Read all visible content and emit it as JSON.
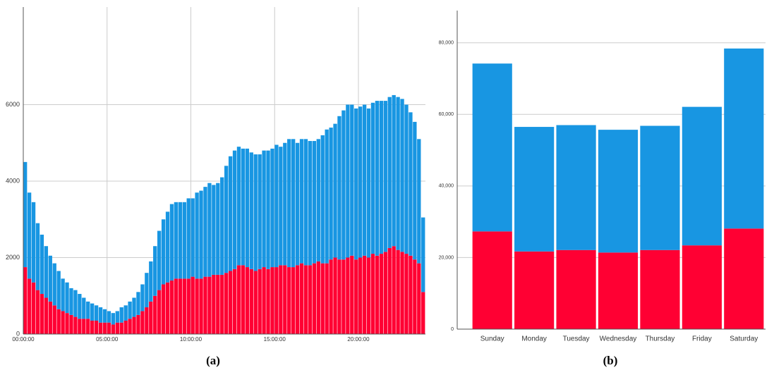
{
  "chart_data": [
    {
      "type": "histogram",
      "caption": "(a)",
      "bins": [
        0,
        0.25,
        0.5,
        0.75,
        1,
        1.25,
        1.5,
        1.75,
        2,
        2.25,
        2.5,
        2.75,
        3,
        3.25,
        3.5,
        3.75,
        4,
        4.25,
        4.5,
        4.75,
        5,
        5.25,
        5.5,
        5.75,
        6,
        6.25,
        6.5,
        6.75,
        7,
        7.25,
        7.5,
        7.75,
        8,
        8.25,
        8.5,
        8.75,
        9,
        9.25,
        9.5,
        9.75,
        10,
        10.25,
        10.5,
        10.75,
        11,
        11.25,
        11.5,
        11.75,
        12,
        12.25,
        12.5,
        12.75,
        13,
        13.25,
        13.5,
        13.75,
        14,
        14.25,
        14.5,
        14.75,
        15,
        15.25,
        15.5,
        15.75,
        16,
        16.25,
        16.5,
        16.75,
        17,
        17.25,
        17.5,
        17.75,
        18,
        18.25,
        18.5,
        18.75,
        19,
        19.25,
        19.5,
        19.75,
        20,
        20.25,
        20.5,
        20.75,
        21,
        21.25,
        21.5,
        21.75,
        22,
        22.25,
        22.5,
        22.75,
        23,
        23.25,
        23.5,
        23.75,
        24
      ],
      "series": [
        {
          "color": "#ff0033",
          "values": [
            1750,
            1450,
            1350,
            1150,
            1050,
            950,
            850,
            750,
            650,
            600,
            550,
            500,
            450,
            400,
            400,
            400,
            350,
            350,
            300,
            300,
            300,
            250,
            300,
            300,
            350,
            400,
            450,
            500,
            600,
            700,
            850,
            1000,
            1150,
            1300,
            1350,
            1400,
            1450,
            1450,
            1450,
            1450,
            1500,
            1450,
            1450,
            1500,
            1500,
            1550,
            1550,
            1550,
            1600,
            1650,
            1700,
            1800,
            1800,
            1750,
            1700,
            1650,
            1700,
            1750,
            1700,
            1750,
            1750,
            1800,
            1800,
            1750,
            1750,
            1800,
            1850,
            1800,
            1800,
            1850,
            1900,
            1850,
            1850,
            1950,
            2000,
            1950,
            1950,
            2000,
            2050,
            1950,
            2000,
            2050,
            2000,
            2100,
            2050,
            2100,
            2150,
            2250,
            2300,
            2200,
            2150,
            2100,
            2050,
            1950,
            1850,
            1100
          ]
        },
        {
          "color": "#1896e2",
          "values": [
            2750,
            2250,
            2100,
            1750,
            1550,
            1350,
            1200,
            1100,
            1000,
            850,
            800,
            700,
            700,
            650,
            550,
            450,
            450,
            400,
            400,
            350,
            300,
            300,
            300,
            400,
            400,
            450,
            500,
            600,
            700,
            900,
            1050,
            1300,
            1550,
            1700,
            1850,
            2000,
            2000,
            2000,
            2000,
            2100,
            2050,
            2250,
            2300,
            2350,
            2450,
            2350,
            2400,
            2550,
            2800,
            3000,
            3100,
            3100,
            3050,
            3100,
            3050,
            3050,
            3000,
            3050,
            3100,
            3100,
            3200,
            3100,
            3200,
            3350,
            3350,
            3200,
            3250,
            3300,
            3250,
            3200,
            3200,
            3350,
            3500,
            3450,
            3500,
            3750,
            3900,
            4000,
            3950,
            3950,
            3950,
            3950,
            3900,
            3950,
            4050,
            4000,
            3950,
            3950,
            3950,
            4000,
            4000,
            3900,
            3750,
            3600,
            3250,
            1950
          ]
        }
      ],
      "xlim": [
        0,
        24
      ],
      "xticks": [
        {
          "value": 0,
          "label": "00:00:00"
        },
        {
          "value": 5,
          "label": "05:00:00"
        },
        {
          "value": 10,
          "label": "10:00:00"
        },
        {
          "value": 15,
          "label": "15:00:00"
        },
        {
          "value": 20,
          "label": "20:00:00"
        }
      ],
      "ylim": [
        0,
        8000
      ],
      "yticks": [
        0,
        2000,
        4000,
        6000
      ],
      "grid": true
    },
    {
      "type": "bar",
      "caption": "(b)",
      "categories": [
        "Sunday",
        "Monday",
        "Tuesday",
        "Wednesday",
        "Thursday",
        "Friday",
        "Saturday"
      ],
      "series": [
        {
          "color": "#ff0033",
          "values": [
            27300,
            21700,
            22100,
            21400,
            22100,
            23400,
            28100
          ]
        },
        {
          "color": "#1896e2",
          "values": [
            46900,
            34800,
            34900,
            34300,
            34700,
            38700,
            50300
          ]
        }
      ],
      "ylim": [
        0,
        89000
      ],
      "yticks": [
        0,
        {
          "value": 20000,
          "label": "20,000"
        },
        {
          "value": 40000,
          "label": "40,000"
        },
        {
          "value": 60000,
          "label": "60,000"
        },
        {
          "value": 80000,
          "label": "80,000"
        }
      ],
      "grid": true
    }
  ]
}
